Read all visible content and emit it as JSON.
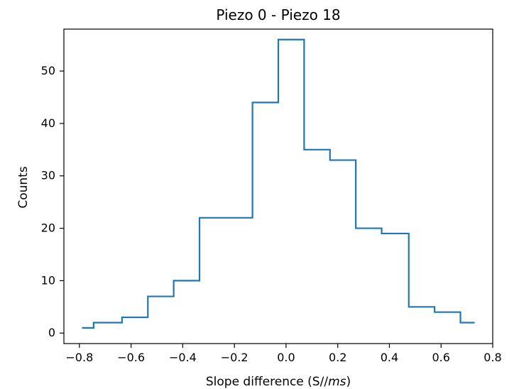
{
  "chart_data": {
    "type": "histogram",
    "title": "Piezo 0 - Piezo 18",
    "xlabel_main": "Slope difference (S//",
    "xlabel_italic": "ms",
    "xlabel_end": ")",
    "ylabel": "Counts",
    "xlim": [
      -0.86,
      0.8
    ],
    "ylim": [
      -2,
      58
    ],
    "x_ticks": [
      -0.8,
      -0.6,
      -0.4,
      -0.2,
      0.0,
      0.2,
      0.4,
      0.6,
      0.8
    ],
    "x_tick_labels": [
      "−0.8",
      "−0.6",
      "−0.4",
      "−0.2",
      "0.0",
      "0.2",
      "0.4",
      "0.6",
      "0.8"
    ],
    "y_ticks": [
      0,
      10,
      20,
      30,
      40,
      50
    ],
    "y_tick_labels": [
      "0",
      "10",
      "20",
      "30",
      "40",
      "50"
    ],
    "series": [
      {
        "color": "#1f77b4",
        "bin_edges": [
          -0.79,
          -0.745,
          -0.635,
          -0.535,
          -0.435,
          -0.335,
          -0.13,
          -0.03,
          0.07,
          0.17,
          0.27,
          0.37,
          0.475,
          0.575,
          0.675,
          0.73
        ],
        "counts": [
          1,
          2,
          3,
          7,
          10,
          22,
          44,
          56,
          35,
          33,
          20,
          19,
          5,
          4,
          2
        ]
      }
    ],
    "grid": false
  }
}
